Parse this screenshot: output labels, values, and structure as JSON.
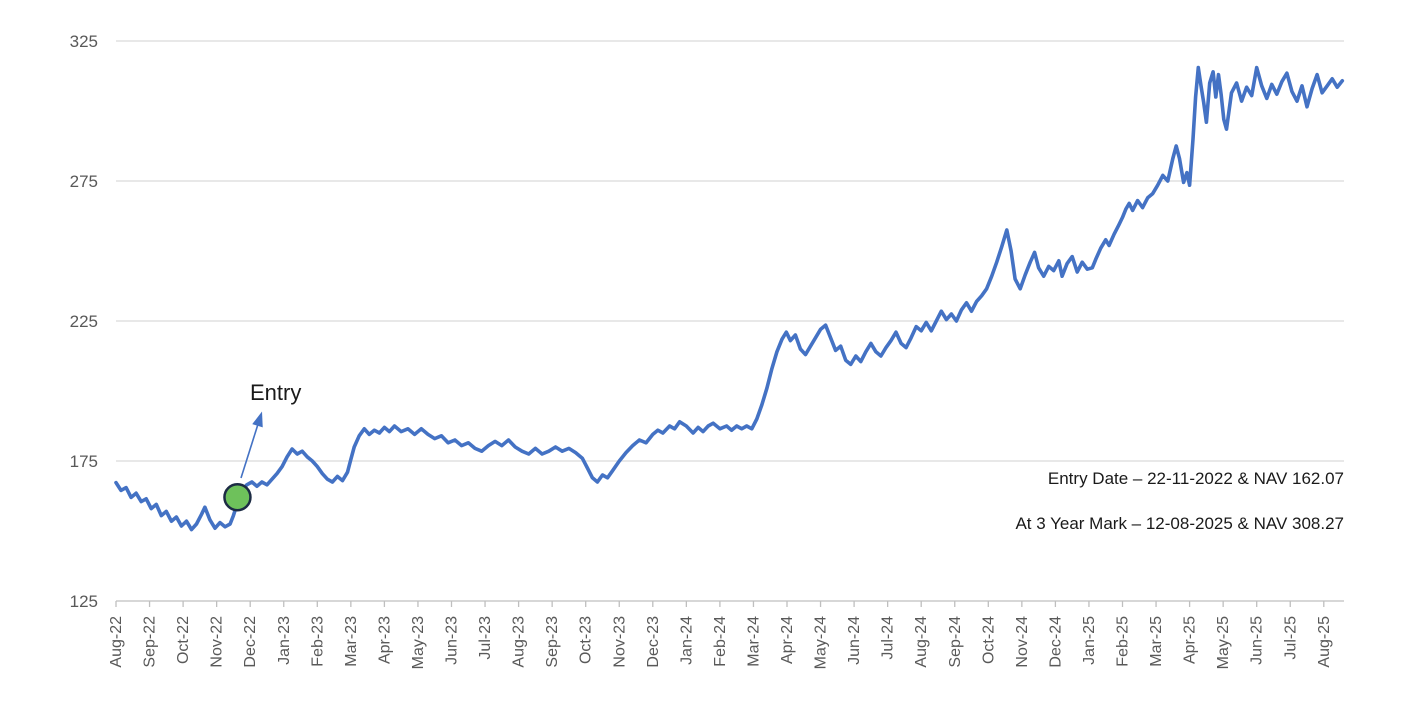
{
  "chart_data": {
    "type": "line",
    "title": "",
    "series_name": "NAV",
    "x_unit": "month_offset_from_Aug_2022",
    "x_labels": [
      "Aug-22",
      "Sep-22",
      "Oct-22",
      "Nov-22",
      "Dec-22",
      "Jan-23",
      "Feb-23",
      "Mar-23",
      "Apr-23",
      "May-23",
      "Jun-23",
      "Jul-23",
      "Aug-23",
      "Sep-23",
      "Oct-23",
      "Nov-23",
      "Dec-23",
      "Jan-24",
      "Feb-24",
      "Mar-24",
      "Apr-24",
      "May-24",
      "Jun-24",
      "Jul-24",
      "Aug-24",
      "Sep-24",
      "Oct-24",
      "Nov-24",
      "Dec-24",
      "Jan-25",
      "Feb-25",
      "Mar-25",
      "Apr-25",
      "May-25",
      "Jun-25",
      "Jul-25",
      "Aug-25"
    ],
    "y_ticks": [
      325,
      275,
      225,
      175,
      125
    ],
    "y_range": [
      125,
      325
    ],
    "grid": true,
    "legend": "none",
    "line_color": "#4472C4",
    "gridline_color": "#D9D9D9",
    "axis_line_color": "#BFBFBF",
    "axis_text_color": "#595959",
    "points": [
      [
        0,
        167.3
      ],
      [
        0.15,
        164.5
      ],
      [
        0.3,
        165.5
      ],
      [
        0.45,
        162
      ],
      [
        0.6,
        163.5
      ],
      [
        0.75,
        160.5
      ],
      [
        0.9,
        161.5
      ],
      [
        1.05,
        158
      ],
      [
        1.2,
        159.5
      ],
      [
        1.35,
        155.5
      ],
      [
        1.5,
        157
      ],
      [
        1.65,
        153.5
      ],
      [
        1.8,
        155
      ],
      [
        1.95,
        151.8
      ],
      [
        2.1,
        153.5
      ],
      [
        2.25,
        150.5
      ],
      [
        2.4,
        152.5
      ],
      [
        2.55,
        156
      ],
      [
        2.65,
        158.5
      ],
      [
        2.8,
        154
      ],
      [
        2.95,
        151
      ],
      [
        3.1,
        153
      ],
      [
        3.25,
        151.5
      ],
      [
        3.4,
        152.5
      ],
      [
        3.5,
        155.5
      ],
      [
        3.58,
        158.5
      ],
      [
        3.65,
        162.07
      ],
      [
        3.75,
        164.5
      ],
      [
        3.9,
        166.5
      ],
      [
        4.05,
        167.5
      ],
      [
        4.2,
        166
      ],
      [
        4.35,
        167.5
      ],
      [
        4.5,
        166.5
      ],
      [
        4.65,
        168.5
      ],
      [
        4.8,
        170.5
      ],
      [
        4.95,
        173
      ],
      [
        5.1,
        176.5
      ],
      [
        5.25,
        179.3
      ],
      [
        5.4,
        177.5
      ],
      [
        5.55,
        178.5
      ],
      [
        5.7,
        176.5
      ],
      [
        5.85,
        175
      ],
      [
        6.0,
        173
      ],
      [
        6.15,
        170.5
      ],
      [
        6.3,
        168.5
      ],
      [
        6.45,
        167.5
      ],
      [
        6.6,
        169.5
      ],
      [
        6.75,
        168
      ],
      [
        6.9,
        171
      ],
      [
        7.0,
        175.5
      ],
      [
        7.1,
        180
      ],
      [
        7.25,
        184
      ],
      [
        7.4,
        186.5
      ],
      [
        7.55,
        184.5
      ],
      [
        7.7,
        186
      ],
      [
        7.85,
        185
      ],
      [
        8.0,
        187
      ],
      [
        8.15,
        185.5
      ],
      [
        8.3,
        187.5
      ],
      [
        8.5,
        185.5
      ],
      [
        8.7,
        186.5
      ],
      [
        8.9,
        184.5
      ],
      [
        9.1,
        186.5
      ],
      [
        9.3,
        184.5
      ],
      [
        9.5,
        183
      ],
      [
        9.7,
        184
      ],
      [
        9.9,
        181.5
      ],
      [
        10.1,
        182.5
      ],
      [
        10.3,
        180.5
      ],
      [
        10.5,
        181.5
      ],
      [
        10.7,
        179.5
      ],
      [
        10.9,
        178.5
      ],
      [
        11.1,
        180.5
      ],
      [
        11.3,
        182
      ],
      [
        11.5,
        180.5
      ],
      [
        11.7,
        182.5
      ],
      [
        11.9,
        180
      ],
      [
        12.1,
        178.5
      ],
      [
        12.3,
        177.5
      ],
      [
        12.5,
        179.5
      ],
      [
        12.7,
        177.5
      ],
      [
        12.9,
        178.5
      ],
      [
        13.1,
        180
      ],
      [
        13.3,
        178.5
      ],
      [
        13.5,
        179.5
      ],
      [
        13.7,
        178
      ],
      [
        13.9,
        176
      ],
      [
        14.05,
        172.5
      ],
      [
        14.2,
        169
      ],
      [
        14.35,
        167.5
      ],
      [
        14.5,
        170
      ],
      [
        14.65,
        169
      ],
      [
        14.8,
        171.5
      ],
      [
        15.0,
        175
      ],
      [
        15.2,
        178
      ],
      [
        15.4,
        180.5
      ],
      [
        15.6,
        182.5
      ],
      [
        15.8,
        181.5
      ],
      [
        16.0,
        184.5
      ],
      [
        16.15,
        186
      ],
      [
        16.3,
        185
      ],
      [
        16.5,
        187.5
      ],
      [
        16.65,
        186.5
      ],
      [
        16.8,
        189
      ],
      [
        17.0,
        187.5
      ],
      [
        17.2,
        185
      ],
      [
        17.35,
        187
      ],
      [
        17.5,
        185.5
      ],
      [
        17.65,
        187.5
      ],
      [
        17.8,
        188.5
      ],
      [
        18.0,
        186.5
      ],
      [
        18.2,
        187.5
      ],
      [
        18.35,
        186
      ],
      [
        18.5,
        187.5
      ],
      [
        18.65,
        186.5
      ],
      [
        18.8,
        187.5
      ],
      [
        18.95,
        186.5
      ],
      [
        19.1,
        190
      ],
      [
        19.25,
        195
      ],
      [
        19.4,
        201
      ],
      [
        19.55,
        208
      ],
      [
        19.7,
        214
      ],
      [
        19.85,
        218.5
      ],
      [
        19.98,
        221
      ],
      [
        20.1,
        218
      ],
      [
        20.25,
        220
      ],
      [
        20.4,
        215
      ],
      [
        20.55,
        213
      ],
      [
        20.7,
        216
      ],
      [
        20.85,
        219
      ],
      [
        21.0,
        222
      ],
      [
        21.15,
        223.5
      ],
      [
        21.3,
        219
      ],
      [
        21.45,
        214.5
      ],
      [
        21.6,
        216
      ],
      [
        21.75,
        211
      ],
      [
        21.9,
        209.5
      ],
      [
        22.05,
        212.5
      ],
      [
        22.2,
        210.5
      ],
      [
        22.35,
        214
      ],
      [
        22.5,
        217
      ],
      [
        22.65,
        214
      ],
      [
        22.8,
        212.5
      ],
      [
        22.95,
        215.5
      ],
      [
        23.1,
        218
      ],
      [
        23.25,
        221
      ],
      [
        23.4,
        217
      ],
      [
        23.55,
        215.5
      ],
      [
        23.7,
        219
      ],
      [
        23.85,
        223
      ],
      [
        24.0,
        221.5
      ],
      [
        24.15,
        224.5
      ],
      [
        24.3,
        221.5
      ],
      [
        24.45,
        225
      ],
      [
        24.6,
        228.5
      ],
      [
        24.75,
        225.5
      ],
      [
        24.9,
        227.5
      ],
      [
        25.05,
        225
      ],
      [
        25.2,
        229
      ],
      [
        25.35,
        231.5
      ],
      [
        25.5,
        228.5
      ],
      [
        25.65,
        232
      ],
      [
        25.8,
        234
      ],
      [
        25.95,
        236.5
      ],
      [
        26.1,
        241
      ],
      [
        26.25,
        246
      ],
      [
        26.4,
        251.5
      ],
      [
        26.55,
        257.5
      ],
      [
        26.68,
        250
      ],
      [
        26.8,
        240
      ],
      [
        26.95,
        236.5
      ],
      [
        27.1,
        241.5
      ],
      [
        27.25,
        246
      ],
      [
        27.38,
        249.5
      ],
      [
        27.5,
        244
      ],
      [
        27.65,
        241
      ],
      [
        27.8,
        244.5
      ],
      [
        27.95,
        243
      ],
      [
        28.1,
        246.5
      ],
      [
        28.2,
        241
      ],
      [
        28.35,
        245.5
      ],
      [
        28.5,
        248
      ],
      [
        28.65,
        242.5
      ],
      [
        28.8,
        246
      ],
      [
        28.95,
        243.5
      ],
      [
        29.1,
        244
      ],
      [
        29.2,
        247
      ],
      [
        29.35,
        251
      ],
      [
        29.5,
        254
      ],
      [
        29.6,
        252
      ],
      [
        29.75,
        256
      ],
      [
        29.9,
        259.5
      ],
      [
        30.0,
        262
      ],
      [
        30.1,
        265
      ],
      [
        30.2,
        267
      ],
      [
        30.3,
        264.5
      ],
      [
        30.45,
        268
      ],
      [
        30.6,
        265.5
      ],
      [
        30.75,
        269
      ],
      [
        30.9,
        270.5
      ],
      [
        31.05,
        273.5
      ],
      [
        31.2,
        277
      ],
      [
        31.35,
        275
      ],
      [
        31.5,
        283
      ],
      [
        31.6,
        287.5
      ],
      [
        31.7,
        283
      ],
      [
        31.82,
        274.5
      ],
      [
        31.92,
        278
      ],
      [
        32.0,
        273.5
      ],
      [
        32.1,
        290
      ],
      [
        32.18,
        305
      ],
      [
        32.26,
        315.5
      ],
      [
        32.34,
        309
      ],
      [
        32.42,
        303
      ],
      [
        32.5,
        296
      ],
      [
        32.6,
        310
      ],
      [
        32.7,
        314
      ],
      [
        32.78,
        305
      ],
      [
        32.86,
        313
      ],
      [
        32.94,
        306
      ],
      [
        33.02,
        297
      ],
      [
        33.1,
        293.5
      ],
      [
        33.25,
        306.5
      ],
      [
        33.4,
        310
      ],
      [
        33.55,
        303.5
      ],
      [
        33.7,
        308.5
      ],
      [
        33.85,
        305.5
      ],
      [
        34.0,
        315.5
      ],
      [
        34.15,
        309
      ],
      [
        34.3,
        304.5
      ],
      [
        34.45,
        309.5
      ],
      [
        34.6,
        306
      ],
      [
        34.75,
        310.5
      ],
      [
        34.9,
        313.5
      ],
      [
        35.05,
        307
      ],
      [
        35.2,
        303.5
      ],
      [
        35.35,
        309
      ],
      [
        35.5,
        301.5
      ],
      [
        35.65,
        308
      ],
      [
        35.8,
        313
      ],
      [
        35.95,
        306.5
      ],
      [
        36.1,
        309
      ],
      [
        36.25,
        311.5
      ],
      [
        36.4,
        308.5
      ],
      [
        36.55,
        310.8
      ]
    ],
    "entry_marker": {
      "month_index": 3.62,
      "nav": 162.07,
      "fill": "#6EC15B",
      "stroke": "#1C2B44"
    }
  },
  "annotations": {
    "entry_label": "Entry",
    "entry_note": "Entry Date – 22-11-2022 & NAV 162.07",
    "three_year_note": "At 3 Year Mark – 12-08-2025 & NAV 308.27",
    "entry": {
      "date": "22-11-2022",
      "nav": 162.07
    },
    "three_year_mark": {
      "date": "12-08-2025",
      "nav": 308.27
    }
  }
}
